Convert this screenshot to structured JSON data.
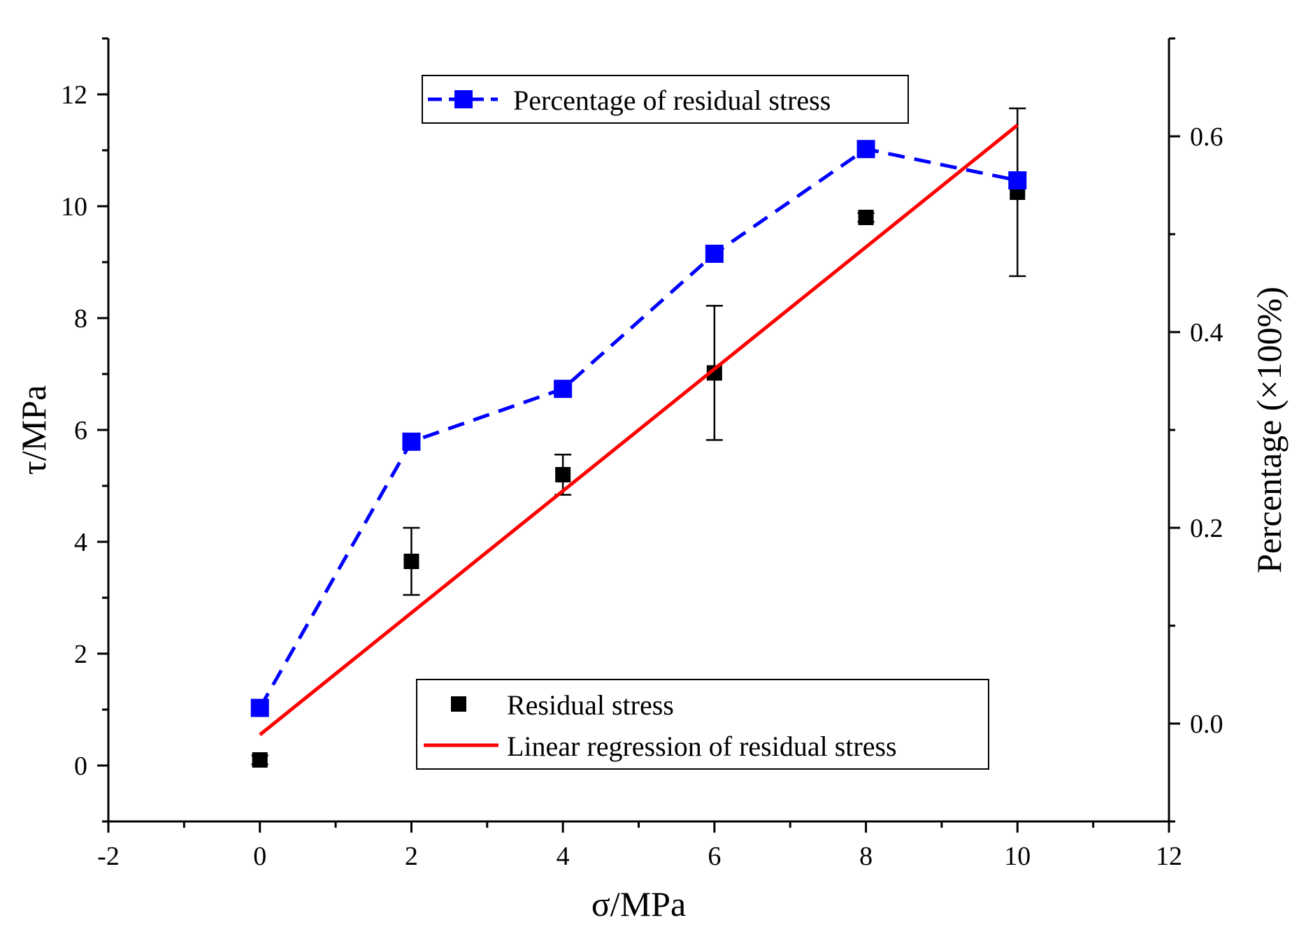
{
  "chart_data": {
    "type": "scatter",
    "title": "",
    "xlabel": "σ/MPa",
    "ylabel": "τ/MPa",
    "y2label": "Percentage (×100%)",
    "xlim": [
      -2,
      12
    ],
    "ylim": [
      -1,
      13
    ],
    "y2lim": [
      -0.1,
      0.7
    ],
    "xticks": [
      -2,
      0,
      2,
      4,
      6,
      8,
      10,
      12
    ],
    "xtick_labels": [
      "-2",
      "0",
      "2",
      "4",
      "6",
      "8",
      "10",
      "12"
    ],
    "yticks": [
      0,
      2,
      4,
      6,
      8,
      10,
      12
    ],
    "ytick_labels": [
      "0",
      "2",
      "4",
      "6",
      "8",
      "10",
      "12"
    ],
    "y2ticks": [
      0.0,
      0.2,
      0.4,
      0.6
    ],
    "y2tick_labels": [
      "0.0",
      "0.2",
      "0.4",
      "0.6"
    ],
    "series": [
      {
        "name": "Residual stress",
        "axis": "left",
        "marker": "square",
        "color": "#000000",
        "x": [
          0,
          2,
          4,
          6,
          8,
          10
        ],
        "y": [
          0.1,
          3.65,
          5.2,
          7.02,
          9.8,
          10.25
        ],
        "yerr": [
          0.08,
          0.6,
          0.36,
          1.2,
          0.08,
          1.5
        ]
      },
      {
        "name": "Linear regression of residual stress",
        "axis": "left",
        "line": "solid",
        "color": "#ff0000",
        "x": [
          0,
          10
        ],
        "y": [
          0.55,
          11.45
        ]
      },
      {
        "name": "Percentage of residual stress",
        "axis": "right",
        "marker": "square",
        "line": "dashed",
        "color": "#0000ff",
        "x": [
          0,
          2,
          4,
          6,
          8,
          10
        ],
        "y": [
          0.016,
          0.288,
          0.342,
          0.48,
          0.587,
          0.555
        ]
      }
    ],
    "legends": [
      {
        "position": "top-center",
        "entries": [
          "Percentage of residual stress"
        ]
      },
      {
        "position": "bottom-center",
        "entries": [
          "Residual stress",
          "Linear regression of residual stress"
        ]
      }
    ]
  }
}
